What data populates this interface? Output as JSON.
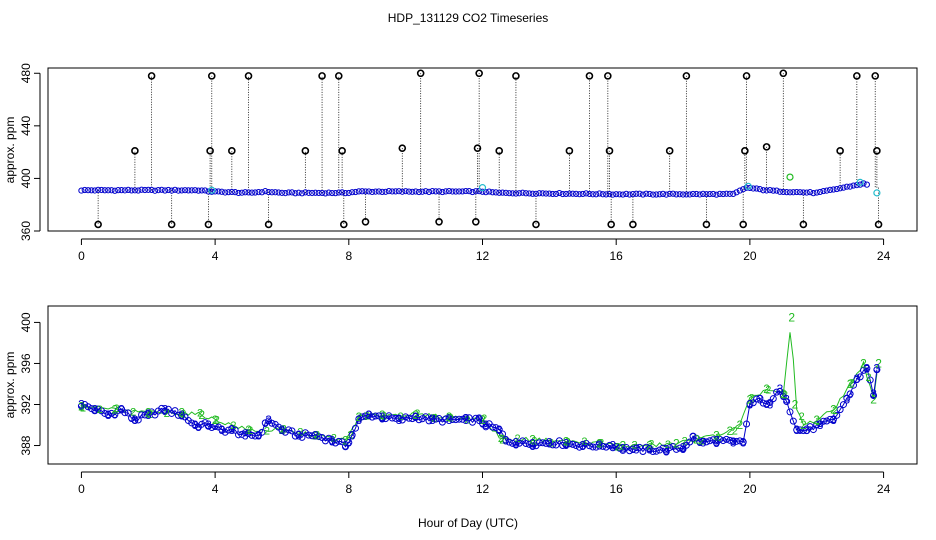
{
  "title": "HDP_131129  CO2 Timeseries",
  "colors": {
    "raw": "#000000",
    "series_a": "#0000cc",
    "series_b": "#22bb22",
    "series_c": "#22bbcc"
  },
  "chart_data": [
    {
      "type": "scatter",
      "ylabel": "approx. ppm",
      "xlim": [
        -1,
        25
      ],
      "ylim": [
        360,
        484
      ],
      "xticks": [
        0,
        4,
        8,
        12,
        16,
        20,
        24
      ],
      "yticks": [
        360,
        400,
        440,
        480
      ],
      "xtick_labels": [
        "0",
        "4",
        "8",
        "12",
        "16",
        "20",
        "24"
      ],
      "ytick_labels": [
        "360",
        "400",
        "440",
        "480"
      ],
      "baseline": [
        [
          0.0,
          391
        ],
        [
          2.0,
          391
        ],
        [
          3.5,
          391
        ],
        [
          3.9,
          390
        ],
        [
          5.0,
          389
        ],
        [
          5.5,
          390
        ],
        [
          6.0,
          389
        ],
        [
          7.9,
          389
        ],
        [
          8.3,
          390
        ],
        [
          12.0,
          390
        ],
        [
          12.5,
          389
        ],
        [
          16.0,
          388
        ],
        [
          19.5,
          388
        ],
        [
          19.9,
          393
        ],
        [
          20.5,
          391
        ],
        [
          21.0,
          390
        ],
        [
          22.0,
          389
        ],
        [
          23.0,
          394
        ],
        [
          23.4,
          396
        ],
        [
          23.8,
          393
        ]
      ],
      "spikes": [
        [
          0.5,
          365
        ],
        [
          1.6,
          421
        ],
        [
          2.1,
          478
        ],
        [
          2.7,
          365
        ],
        [
          3.8,
          365
        ],
        [
          3.85,
          421
        ],
        [
          3.9,
          478
        ],
        [
          4.5,
          421
        ],
        [
          5.0,
          478
        ],
        [
          5.6,
          365
        ],
        [
          6.7,
          421
        ],
        [
          7.2,
          478
        ],
        [
          7.7,
          478
        ],
        [
          7.8,
          421
        ],
        [
          7.85,
          365
        ],
        [
          8.5,
          367
        ],
        [
          9.6,
          423
        ],
        [
          10.15,
          480
        ],
        [
          10.7,
          367
        ],
        [
          11.8,
          367
        ],
        [
          11.85,
          423
        ],
        [
          11.9,
          480
        ],
        [
          12.5,
          421
        ],
        [
          13.0,
          478
        ],
        [
          13.6,
          365
        ],
        [
          14.6,
          421
        ],
        [
          15.2,
          478
        ],
        [
          15.75,
          478
        ],
        [
          15.8,
          421
        ],
        [
          15.85,
          365
        ],
        [
          16.5,
          365
        ],
        [
          17.6,
          421
        ],
        [
          18.1,
          478
        ],
        [
          18.7,
          365
        ],
        [
          19.8,
          365
        ],
        [
          19.85,
          421
        ],
        [
          19.9,
          478
        ],
        [
          20.5,
          424
        ],
        [
          21.0,
          480
        ],
        [
          21.6,
          365
        ],
        [
          22.7,
          421
        ],
        [
          23.2,
          478
        ],
        [
          23.75,
          478
        ],
        [
          23.8,
          421
        ],
        [
          23.85,
          365
        ]
      ],
      "extra_points": [
        [
          3.9,
          391
        ],
        [
          12.0,
          393
        ],
        [
          19.95,
          394
        ],
        [
          21.2,
          401
        ],
        [
          23.3,
          397
        ],
        [
          23.8,
          389
        ]
      ]
    },
    {
      "type": "line",
      "ylabel": "approx. ppm",
      "xlabel": "Hour of Day (UTC)",
      "xlim": [
        -1,
        25
      ],
      "ylim": [
        386.2,
        401.6
      ],
      "xticks": [
        0,
        4,
        8,
        12,
        16,
        20,
        24
      ],
      "yticks": [
        388,
        392,
        396,
        400
      ],
      "xtick_labels": [
        "0",
        "4",
        "8",
        "12",
        "16",
        "20",
        "24"
      ],
      "ytick_labels": [
        "388",
        "392",
        "396",
        "400"
      ],
      "series": [
        {
          "marker": "3",
          "points": [
            [
              0.0,
              392
            ],
            [
              0.4,
              391.5
            ],
            [
              0.8,
              391
            ],
            [
              1.2,
              391.5
            ],
            [
              1.6,
              390.5
            ],
            [
              2.0,
              391
            ],
            [
              2.5,
              391.5
            ],
            [
              3.0,
              391
            ],
            [
              3.4,
              390
            ],
            [
              3.8,
              390
            ],
            [
              4.2,
              389.5
            ],
            [
              4.5,
              389.5
            ],
            [
              4.9,
              389
            ],
            [
              5.3,
              389
            ],
            [
              5.6,
              390.5
            ],
            [
              6.0,
              389.5
            ],
            [
              6.5,
              389
            ],
            [
              7.0,
              389
            ],
            [
              7.5,
              388.5
            ],
            [
              7.9,
              388
            ],
            [
              8.1,
              389
            ],
            [
              8.3,
              390.5
            ],
            [
              8.6,
              391
            ],
            [
              9.0,
              390.8
            ],
            [
              9.5,
              390.5
            ],
            [
              10.0,
              390.8
            ],
            [
              10.5,
              390.5
            ],
            [
              11.0,
              390.5
            ],
            [
              11.5,
              390.5
            ],
            [
              11.9,
              390.5
            ],
            [
              12.1,
              390
            ],
            [
              12.5,
              389.5
            ],
            [
              12.7,
              388.5
            ],
            [
              13.0,
              388.3
            ],
            [
              13.5,
              388.2
            ],
            [
              14.0,
              388.3
            ],
            [
              14.5,
              388.2
            ],
            [
              15.0,
              388
            ],
            [
              15.5,
              388
            ],
            [
              15.9,
              388
            ],
            [
              16.2,
              387.7
            ],
            [
              16.6,
              387.6
            ],
            [
              17.0,
              387.6
            ],
            [
              17.5,
              387.6
            ],
            [
              18.0,
              387.8
            ],
            [
              18.3,
              388.8
            ],
            [
              18.6,
              388.3
            ],
            [
              19.0,
              388.5
            ],
            [
              19.5,
              388.3
            ],
            [
              19.8,
              388.3
            ],
            [
              20.0,
              392
            ],
            [
              20.3,
              392.5
            ],
            [
              20.6,
              392
            ],
            [
              20.9,
              393.5
            ],
            [
              21.1,
              392.5
            ],
            [
              21.4,
              389.5
            ],
            [
              21.7,
              389.5
            ],
            [
              22.1,
              390
            ],
            [
              22.5,
              390.5
            ],
            [
              22.9,
              392.5
            ],
            [
              23.2,
              394.5
            ],
            [
              23.5,
              395.5
            ],
            [
              23.7,
              393
            ],
            [
              23.8,
              395.5
            ]
          ]
        },
        {
          "marker": "2",
          "points": [
            [
              0.0,
              391.8
            ],
            [
              1.0,
              391.5
            ],
            [
              2.0,
              391.2
            ],
            [
              3.0,
              391.2
            ],
            [
              3.6,
              391
            ],
            [
              4.0,
              390.5
            ],
            [
              5.0,
              389.5
            ],
            [
              6.0,
              389.5
            ],
            [
              7.0,
              389
            ],
            [
              7.9,
              388.5
            ],
            [
              8.3,
              390.8
            ],
            [
              9.0,
              391
            ],
            [
              10.0,
              391
            ],
            [
              11.0,
              390.8
            ],
            [
              12.0,
              390.5
            ],
            [
              12.6,
              388.6
            ],
            [
              13.5,
              388.6
            ],
            [
              14.5,
              388.4
            ],
            [
              15.5,
              388.2
            ],
            [
              16.2,
              388
            ],
            [
              17.0,
              388
            ],
            [
              17.8,
              388.2
            ],
            [
              18.4,
              388.6
            ],
            [
              19.0,
              389
            ],
            [
              19.4,
              389.4
            ],
            [
              19.7,
              390
            ],
            [
              20.0,
              392.5
            ],
            [
              20.5,
              393.5
            ],
            [
              21.0,
              393
            ],
            [
              21.25,
              400.5
            ],
            [
              21.35,
              392
            ],
            [
              21.6,
              390
            ],
            [
              22.0,
              390.5
            ],
            [
              22.5,
              391.5
            ],
            [
              23.0,
              394
            ],
            [
              23.4,
              396
            ],
            [
              23.7,
              392.5
            ],
            [
              23.85,
              396
            ]
          ]
        }
      ]
    }
  ]
}
